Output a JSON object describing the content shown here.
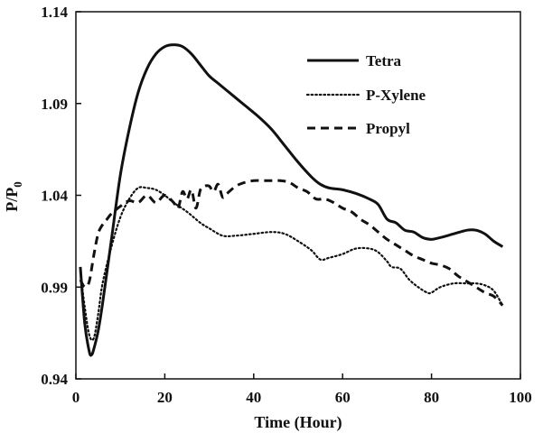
{
  "chart_data": {
    "type": "line",
    "title": "",
    "xlabel": "Time (Hour)",
    "ylabel_main": "P/P",
    "ylabel_sub": "0",
    "xlim": [
      0,
      100
    ],
    "ylim": [
      0.94,
      1.14
    ],
    "xticks": [
      0,
      20,
      40,
      60,
      80,
      100
    ],
    "yticks": [
      0.94,
      0.99,
      1.04,
      1.09,
      1.14
    ],
    "xtick_labels": [
      "0",
      "20",
      "40",
      "60",
      "80",
      "100"
    ],
    "ytick_labels": [
      "0.94",
      "0.99",
      "1.04",
      "1.09",
      "1.14"
    ],
    "legend_position": "top-right",
    "series": [
      {
        "name": "Tetra",
        "style": "solid",
        "color": "#111111",
        "points": [
          [
            1,
            1.001
          ],
          [
            2,
            0.97
          ],
          [
            3,
            0.955
          ],
          [
            3.5,
            0.953
          ],
          [
            4,
            0.956
          ],
          [
            5,
            0.966
          ],
          [
            6,
            0.981
          ],
          [
            8,
            1.016
          ],
          [
            10,
            1.051
          ],
          [
            12,
            1.076
          ],
          [
            14,
            1.096
          ],
          [
            16,
            1.109
          ],
          [
            18,
            1.117
          ],
          [
            20,
            1.121
          ],
          [
            22,
            1.122
          ],
          [
            24,
            1.121
          ],
          [
            26,
            1.117
          ],
          [
            28,
            1.111
          ],
          [
            30,
            1.105
          ],
          [
            32,
            1.101
          ],
          [
            35,
            1.095
          ],
          [
            38,
            1.089
          ],
          [
            41,
            1.083
          ],
          [
            44,
            1.076
          ],
          [
            47,
            1.067
          ],
          [
            50,
            1.058
          ],
          [
            53,
            1.05
          ],
          [
            55,
            1.046
          ],
          [
            57,
            1.044
          ],
          [
            60,
            1.043
          ],
          [
            63,
            1.041
          ],
          [
            66,
            1.038
          ],
          [
            68,
            1.035
          ],
          [
            70,
            1.027
          ],
          [
            72,
            1.025
          ],
          [
            74,
            1.021
          ],
          [
            76,
            1.02
          ],
          [
            78,
            1.017
          ],
          [
            80,
            1.016
          ],
          [
            82,
            1.017
          ],
          [
            85,
            1.019
          ],
          [
            88,
            1.021
          ],
          [
            90,
            1.021
          ],
          [
            92,
            1.019
          ],
          [
            94,
            1.015
          ],
          [
            96,
            1.012
          ]
        ]
      },
      {
        "name": "P-Xylene",
        "style": "dotted",
        "color": "#111111",
        "points": [
          [
            1,
            0.998
          ],
          [
            2,
            0.979
          ],
          [
            3,
            0.964
          ],
          [
            4,
            0.962
          ],
          [
            5,
            0.975
          ],
          [
            6,
            0.992
          ],
          [
            8,
            1.012
          ],
          [
            10,
            1.028
          ],
          [
            12,
            1.038
          ],
          [
            14,
            1.044
          ],
          [
            16,
            1.044
          ],
          [
            18,
            1.043
          ],
          [
            20,
            1.04
          ],
          [
            22,
            1.036
          ],
          [
            25,
            1.031
          ],
          [
            28,
            1.025
          ],
          [
            30,
            1.022
          ],
          [
            33,
            1.018
          ],
          [
            36,
            1.018
          ],
          [
            40,
            1.019
          ],
          [
            44,
            1.02
          ],
          [
            47,
            1.019
          ],
          [
            50,
            1.015
          ],
          [
            53,
            1.01
          ],
          [
            55,
            1.005
          ],
          [
            57,
            1.006
          ],
          [
            60,
            1.008
          ],
          [
            63,
            1.011
          ],
          [
            66,
            1.011
          ],
          [
            68,
            1.009
          ],
          [
            70,
            1.004
          ],
          [
            71,
            1.001
          ],
          [
            73,
            1.0
          ],
          [
            75,
            0.994
          ],
          [
            77,
            0.99
          ],
          [
            79,
            0.987
          ],
          [
            80,
            0.987
          ],
          [
            82,
            0.99
          ],
          [
            85,
            0.992
          ],
          [
            88,
            0.992
          ],
          [
            90,
            0.992
          ],
          [
            92,
            0.991
          ],
          [
            94,
            0.988
          ],
          [
            96,
            0.98
          ]
        ]
      },
      {
        "name": "Propyl",
        "style": "dashed",
        "color": "#111111",
        "points": [
          [
            1,
            0.994
          ],
          [
            2,
            0.99
          ],
          [
            3,
            0.993
          ],
          [
            4,
            1.007
          ],
          [
            5,
            1.019
          ],
          [
            6,
            1.024
          ],
          [
            7,
            1.027
          ],
          [
            8,
            1.03
          ],
          [
            10,
            1.034
          ],
          [
            12,
            1.037
          ],
          [
            14,
            1.036
          ],
          [
            16,
            1.04
          ],
          [
            18,
            1.036
          ],
          [
            20,
            1.04
          ],
          [
            22,
            1.036
          ],
          [
            23,
            1.033
          ],
          [
            24,
            1.042
          ],
          [
            25,
            1.038
          ],
          [
            26,
            1.043
          ],
          [
            27,
            1.033
          ],
          [
            28,
            1.043
          ],
          [
            29,
            1.045
          ],
          [
            30,
            1.045
          ],
          [
            31,
            1.042
          ],
          [
            32,
            1.046
          ],
          [
            33,
            1.039
          ],
          [
            34,
            1.041
          ],
          [
            36,
            1.045
          ],
          [
            38,
            1.047
          ],
          [
            40,
            1.048
          ],
          [
            42,
            1.048
          ],
          [
            44,
            1.048
          ],
          [
            46,
            1.048
          ],
          [
            48,
            1.047
          ],
          [
            50,
            1.044
          ],
          [
            52,
            1.042
          ],
          [
            54,
            1.038
          ],
          [
            56,
            1.038
          ],
          [
            58,
            1.036
          ],
          [
            60,
            1.033
          ],
          [
            62,
            1.031
          ],
          [
            64,
            1.027
          ],
          [
            66,
            1.024
          ],
          [
            68,
            1.02
          ],
          [
            70,
            1.016
          ],
          [
            72,
            1.013
          ],
          [
            74,
            1.01
          ],
          [
            76,
            1.007
          ],
          [
            78,
            1.005
          ],
          [
            80,
            1.003
          ],
          [
            82,
            1.002
          ],
          [
            84,
            1.0
          ],
          [
            86,
            0.996
          ],
          [
            88,
            0.993
          ],
          [
            90,
            0.99
          ],
          [
            92,
            0.987
          ],
          [
            94,
            0.985
          ],
          [
            96,
            0.98
          ]
        ]
      }
    ]
  }
}
